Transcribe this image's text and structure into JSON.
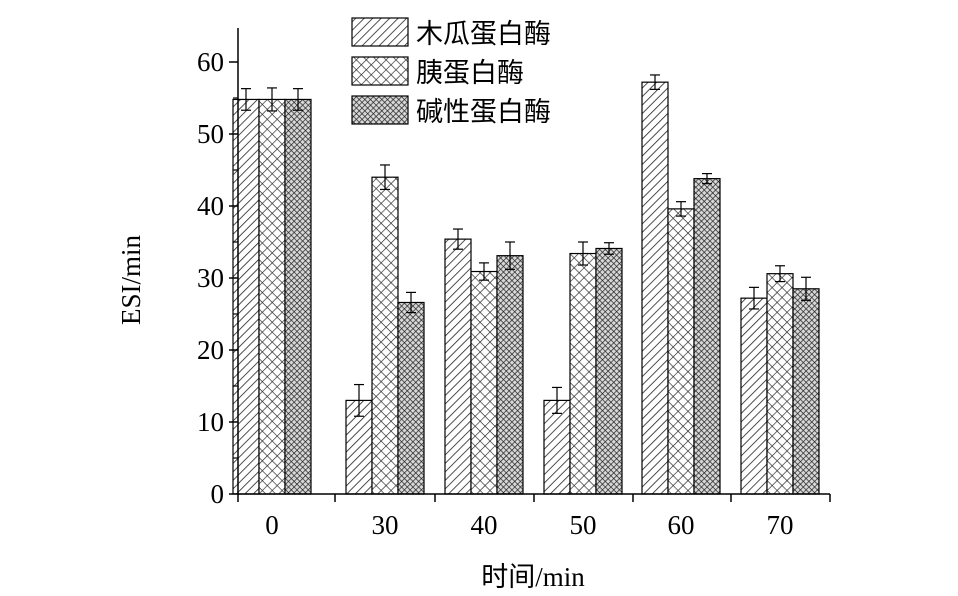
{
  "chart_data": {
    "type": "bar",
    "categories": [
      "0",
      "30",
      "40",
      "50",
      "60",
      "70"
    ],
    "series": [
      {
        "name": "木瓜蛋白酶",
        "pattern": "diagonal-hatch",
        "values": [
          54.8,
          13.0,
          35.4,
          13.0,
          57.2,
          27.2
        ],
        "errors": [
          1.5,
          2.2,
          1.4,
          1.8,
          1.0,
          1.5
        ]
      },
      {
        "name": "胰蛋白酶",
        "pattern": "cross-hatch",
        "values": [
          54.8,
          44.0,
          30.9,
          33.4,
          39.6,
          30.6
        ],
        "errors": [
          1.6,
          1.7,
          1.2,
          1.6,
          1.0,
          1.1
        ]
      },
      {
        "name": "碱性蛋白酶",
        "pattern": "dense-cross-hatch",
        "values": [
          54.8,
          26.6,
          33.1,
          34.1,
          43.8,
          28.5
        ],
        "errors": [
          1.5,
          1.4,
          1.9,
          0.8,
          0.7,
          1.6
        ]
      }
    ],
    "xlabel": "时间/min",
    "ylabel": "ESI/min",
    "ylim": [
      0,
      65
    ],
    "yticks": [
      "0",
      "10",
      "20",
      "30",
      "40",
      "50",
      "60"
    ],
    "grid": false,
    "legend_position": "top-center"
  }
}
